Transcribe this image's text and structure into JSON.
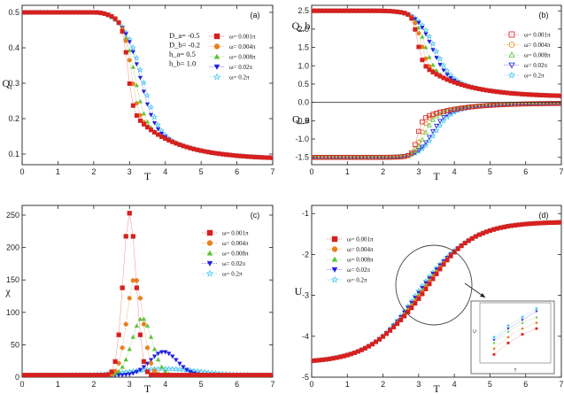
{
  "colors": {
    "w0.001": "#d62020",
    "w0.004": "#e8801e",
    "w0.008": "#5fc13b",
    "w0.02": "#2020e0",
    "w0.2": "#3cc0ee"
  },
  "chart_data": [
    {
      "id": "a",
      "type": "scatter",
      "panel_label": "(a)",
      "xlabel": "T",
      "ylabel": "Q",
      "ylabel_sub": "t",
      "xlim": [
        0,
        7
      ],
      "ylim": [
        0.07,
        0.52
      ],
      "xticks": [
        0,
        1,
        2,
        3,
        4,
        5,
        6,
        7
      ],
      "yticks": [
        0.1,
        0.2,
        0.3,
        0.4,
        0.5
      ],
      "legend_position": "top-right",
      "annotation": [
        "D_a= -0.5",
        "D_b= -0.2",
        "h_a= 0.5",
        "h_b= 1.0"
      ],
      "series": [
        {
          "name": "ω= 0.001π",
          "key": "w0.001",
          "marker": "square",
          "x": [
            2.7,
            2.8,
            2.9,
            3.0,
            3.1,
            3.2
          ],
          "y": [
            0.4,
            0.38,
            0.3,
            0.19,
            0.176,
            0.17
          ]
        },
        {
          "name": "ω= 0.004π",
          "key": "w0.004",
          "marker": "circle",
          "x": [
            2.9,
            3.0,
            3.1,
            3.2,
            3.3,
            3.4
          ],
          "y": [
            0.37,
            0.34,
            0.3,
            0.22,
            0.185,
            0.178
          ]
        },
        {
          "name": "ω= 0.008π",
          "key": "w0.008",
          "marker": "triangle",
          "x": [
            3.0,
            3.1,
            3.2,
            3.3,
            3.4,
            3.5,
            3.6
          ],
          "y": [
            0.37,
            0.35,
            0.32,
            0.29,
            0.24,
            0.21,
            0.19
          ]
        },
        {
          "name": "ω= 0.02π",
          "key": "w0.02",
          "marker": "triangle-down",
          "x": [
            3.2,
            3.4,
            3.6,
            3.8,
            4.0
          ],
          "y": [
            0.33,
            0.3,
            0.25,
            0.22,
            0.2
          ]
        },
        {
          "name": "ω= 0.2π",
          "key": "w0.2",
          "marker": "star",
          "x": [
            3.4,
            3.6,
            3.8,
            4.0,
            4.2
          ],
          "y": [
            0.33,
            0.3,
            0.26,
            0.23,
            0.205
          ]
        }
      ]
    },
    {
      "id": "b",
      "type": "scatter",
      "panel_label": "(b)",
      "xlabel": "T",
      "ylabels": [
        "Q_b",
        "Q_a"
      ],
      "xlim": [
        0,
        7
      ],
      "ylim": [
        -1.7,
        2.65
      ],
      "xticks": [
        0,
        1,
        2,
        3,
        4,
        5,
        6,
        7
      ],
      "yticks": [
        -1.5,
        -1.0,
        -0.5,
        0.0,
        0.5,
        1.0,
        1.5,
        2.0,
        2.5
      ],
      "legend_position": "top-right",
      "series": [
        {
          "name": "ω= 0.001π",
          "key": "w0.001",
          "marker": "square",
          "x": [
            2.8,
            2.9,
            3.0,
            3.1,
            3.2
          ],
          "y": [
            2.0,
            1.7,
            0.95,
            0.75,
            0.72
          ]
        },
        {
          "name": "ω= 0.004π",
          "key": "w0.004",
          "marker": "circle",
          "x": [
            2.9,
            3.0,
            3.1,
            3.2,
            3.3
          ],
          "y": [
            1.85,
            1.6,
            1.2,
            0.95,
            0.82
          ]
        },
        {
          "name": "ω= 0.008π",
          "key": "w0.008",
          "marker": "triangle",
          "x": [
            3.0,
            3.1,
            3.2,
            3.3,
            3.4
          ],
          "y": [
            1.9,
            1.7,
            1.4,
            1.15,
            0.95
          ]
        },
        {
          "name": "ω= 0.02π",
          "key": "w0.02",
          "marker": "triangle-down",
          "x": [
            3.2,
            3.4,
            3.6,
            3.8
          ],
          "y": [
            1.75,
            1.45,
            1.15,
            0.95
          ]
        },
        {
          "name": "ω= 0.2π",
          "key": "w0.2",
          "marker": "star",
          "x": [
            3.3,
            3.5,
            3.7,
            3.9
          ],
          "y": [
            1.9,
            1.6,
            1.3,
            1.05
          ]
        }
      ]
    },
    {
      "id": "c",
      "type": "scatter",
      "panel_label": "(c)",
      "xlabel": "T",
      "ylabel": "χ",
      "xlim": [
        0,
        7
      ],
      "ylim": [
        0,
        265
      ],
      "xticks": [
        0,
        1,
        2,
        3,
        4,
        5,
        6,
        7
      ],
      "yticks": [
        0,
        50,
        100,
        150,
        200,
        250
      ],
      "legend_position": "top-right",
      "series": [
        {
          "name": "ω= 0.001π",
          "key": "w0.001",
          "marker": "square",
          "x": [
            2.6,
            2.7,
            2.8,
            2.9,
            3.0,
            3.1,
            3.2,
            3.3,
            3.4,
            3.6
          ],
          "y": [
            5,
            18,
            60,
            160,
            250,
            235,
            170,
            80,
            30,
            10
          ]
        },
        {
          "name": "ω= 0.004π",
          "key": "w0.004",
          "marker": "circle",
          "x": [
            2.8,
            2.9,
            3.0,
            3.1,
            3.2,
            3.3,
            3.4,
            3.5,
            3.6,
            3.8
          ],
          "y": [
            10,
            35,
            95,
            145,
            150,
            120,
            80,
            45,
            25,
            8
          ]
        },
        {
          "name": "ω= 0.008π",
          "key": "w0.008",
          "marker": "triangle",
          "x": [
            2.9,
            3.0,
            3.1,
            3.2,
            3.3,
            3.4,
            3.5,
            3.6,
            3.7,
            3.8,
            4.0
          ],
          "y": [
            10,
            22,
            45,
            70,
            85,
            88,
            75,
            60,
            40,
            25,
            10
          ]
        },
        {
          "name": "ω= 0.02π",
          "key": "w0.02",
          "marker": "triangle-down",
          "x": [
            3.2,
            3.4,
            3.6,
            3.8,
            4.0,
            4.2,
            4.4,
            4.6
          ],
          "y": [
            6,
            12,
            22,
            32,
            36,
            32,
            22,
            12
          ]
        },
        {
          "name": "ω= 0.2π",
          "key": "w0.2",
          "marker": "star",
          "x": [
            3.2,
            3.6,
            4.0,
            4.4,
            4.8
          ],
          "y": [
            6,
            9,
            11,
            10,
            8
          ]
        }
      ]
    },
    {
      "id": "d",
      "type": "scatter",
      "panel_label": "(d)",
      "xlabel": "T",
      "ylabel": "U",
      "xlim": [
        0,
        7
      ],
      "ylim": [
        -5,
        -0.8
      ],
      "xticks": [
        0,
        1,
        2,
        3,
        4,
        5,
        6,
        7
      ],
      "yticks": [
        -5,
        -4,
        -3,
        -2,
        -1
      ],
      "legend_position": "top-left",
      "inset": {
        "xlabel": "T",
        "ylabel": "U"
      },
      "series": [
        {
          "name": "ω= 0.001π",
          "key": "w0.001",
          "marker": "square",
          "x": [
            2.9,
            3.0,
            3.1,
            3.2
          ],
          "y": [
            -3.05,
            -2.85,
            -2.7,
            -2.6
          ]
        },
        {
          "name": "ω= 0.004π",
          "key": "w0.004",
          "marker": "circle",
          "x": [
            2.9,
            3.0,
            3.1,
            3.2
          ],
          "y": [
            -2.95,
            -2.75,
            -2.6,
            -2.5
          ]
        },
        {
          "name": "ω= 0.008π",
          "key": "w0.008",
          "marker": "triangle",
          "x": [
            2.9,
            3.0,
            3.1,
            3.2
          ],
          "y": [
            -2.85,
            -2.65,
            -2.5,
            -2.4
          ]
        },
        {
          "name": "ω= 0.02π",
          "key": "w0.02",
          "marker": "triangle-down",
          "x": [
            2.9,
            3.0,
            3.1,
            3.2
          ],
          "y": [
            -2.8,
            -2.6,
            -2.45,
            -2.3
          ]
        },
        {
          "name": "ω= 0.2π",
          "key": "w0.2",
          "marker": "star",
          "x": [
            2.9,
            3.0,
            3.1,
            3.2
          ],
          "y": [
            -2.75,
            -2.55,
            -2.4,
            -2.25
          ]
        }
      ]
    }
  ]
}
